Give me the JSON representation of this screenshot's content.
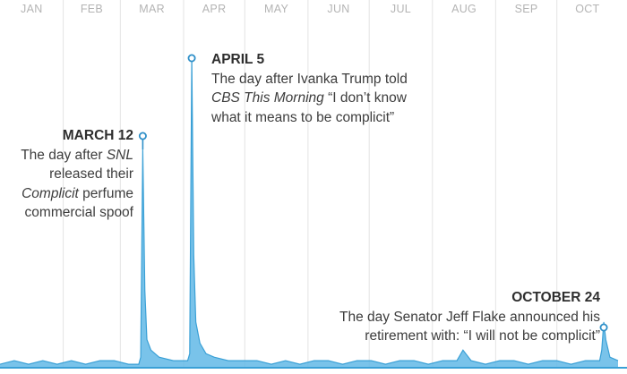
{
  "colors": {
    "series_line": "#3aa0d6",
    "series_fill": "#62b9e6",
    "grid": "#e4e4e4",
    "month_text": "#b4b4b4",
    "marker": "#2e8fc8"
  },
  "chart_data": {
    "type": "area",
    "title": "",
    "xlabel": "",
    "ylabel": "",
    "grid": "vertical month lines",
    "legend": "none",
    "x_axis_position": "top",
    "months": [
      "JAN",
      "FEB",
      "MAR",
      "APR",
      "MAY",
      "JUN",
      "JUL",
      "AUG",
      "SEP",
      "OCT"
    ],
    "xlim": [
      "2017-01-01",
      "2017-10-31"
    ],
    "ylim": [
      0,
      100
    ],
    "series": [
      {
        "x": [
          "2017-01-01",
          "2017-01-08",
          "2017-01-15",
          "2017-01-22",
          "2017-01-29",
          "2017-02-05",
          "2017-02-12",
          "2017-02-19",
          "2017-02-26",
          "2017-03-05",
          "2017-03-10",
          "2017-03-11",
          "2017-03-12",
          "2017-03-13",
          "2017-03-14",
          "2017-03-16",
          "2017-03-20",
          "2017-03-27",
          "2017-04-03",
          "2017-04-04",
          "2017-04-05",
          "2017-04-06",
          "2017-04-07",
          "2017-04-09",
          "2017-04-12",
          "2017-04-16",
          "2017-04-23",
          "2017-04-30",
          "2017-05-07",
          "2017-05-14",
          "2017-05-21",
          "2017-05-28",
          "2017-06-04",
          "2017-06-11",
          "2017-06-18",
          "2017-06-25",
          "2017-07-02",
          "2017-07-09",
          "2017-07-16",
          "2017-07-23",
          "2017-07-30",
          "2017-08-06",
          "2017-08-13",
          "2017-08-16",
          "2017-08-20",
          "2017-08-27",
          "2017-09-03",
          "2017-09-10",
          "2017-09-17",
          "2017-09-24",
          "2017-10-01",
          "2017-10-08",
          "2017-10-15",
          "2017-10-22",
          "2017-10-23",
          "2017-10-24",
          "2017-10-25",
          "2017-10-27",
          "2017-10-31"
        ],
        "y": [
          1,
          2,
          1,
          2,
          1,
          2,
          1,
          2,
          2,
          1,
          1,
          3,
          62,
          22,
          8,
          5,
          3,
          2,
          2,
          4,
          88,
          32,
          13,
          7,
          4,
          3,
          2,
          2,
          2,
          1,
          2,
          1,
          2,
          2,
          1,
          2,
          2,
          1,
          2,
          2,
          1,
          2,
          2,
          5,
          2,
          1,
          2,
          2,
          1,
          2,
          2,
          1,
          2,
          2,
          5,
          13,
          8,
          3,
          2
        ]
      }
    ]
  },
  "annotations": {
    "march": {
      "date": "MARCH 12",
      "date_iso": "2017-03-12",
      "lines": [
        [
          {
            "t": "The day after "
          },
          {
            "t": "SNL",
            "i": true
          }
        ],
        [
          {
            "t": "released their"
          }
        ],
        [
          {
            "t": "Complicit",
            "i": true
          },
          {
            "t": " perfume"
          }
        ],
        [
          {
            "t": "commercial spoof"
          }
        ]
      ]
    },
    "april": {
      "date": "APRIL 5",
      "date_iso": "2017-04-05",
      "lines": [
        [
          {
            "t": "The day after Ivanka Trump told"
          }
        ],
        [
          {
            "t": "CBS This Morning",
            "i": true
          },
          {
            "t": " “I don’t know"
          }
        ],
        [
          {
            "t": "what it means to be complicit”"
          }
        ]
      ]
    },
    "october": {
      "date": "OCTOBER 24",
      "date_iso": "2017-10-24",
      "lines": [
        [
          {
            "t": "The day Senator Jeff Flake announced his"
          }
        ],
        [
          {
            "t": "retirement with: “I will not be complicit”"
          }
        ]
      ]
    }
  }
}
